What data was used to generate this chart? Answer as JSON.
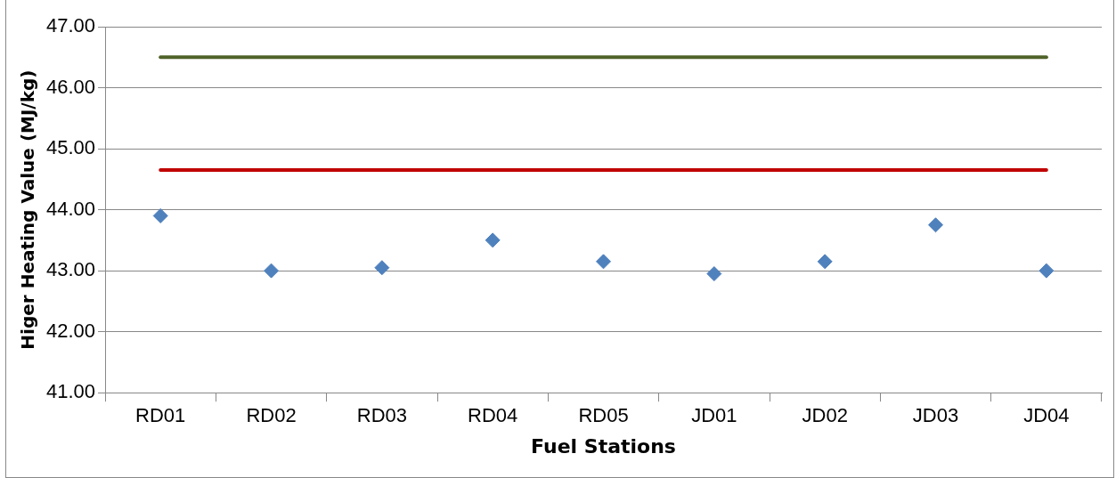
{
  "chart_data": {
    "type": "scatter",
    "xlabel": "Fuel Stations",
    "ylabel": "Higer Heating Value (MJ/kg)",
    "categories": [
      "RD01",
      "RD02",
      "RD03",
      "RD04",
      "RD05",
      "JD01",
      "JD02",
      "JD03",
      "JD04"
    ],
    "series": [
      {
        "type": "line",
        "color": "#4f6228",
        "marker": "none",
        "values": [
          46.5,
          46.5,
          46.5,
          46.5,
          46.5,
          46.5,
          46.5,
          46.5,
          46.5
        ]
      },
      {
        "type": "line",
        "color": "#c00000",
        "marker": "none",
        "values": [
          44.65,
          44.65,
          44.65,
          44.65,
          44.65,
          44.65,
          44.65,
          44.65,
          44.65
        ]
      },
      {
        "type": "scatter",
        "color": "#4f81bd",
        "marker": "diamond",
        "values": [
          43.9,
          43.0,
          43.05,
          43.5,
          43.15,
          42.95,
          43.15,
          43.75,
          43.0
        ]
      }
    ],
    "ylim": [
      41,
      47
    ],
    "yticks": [
      {
        "value": 41,
        "label": "41.00"
      },
      {
        "value": 42,
        "label": "42.00"
      },
      {
        "value": 43,
        "label": "43.00"
      },
      {
        "value": 44,
        "label": "44.00"
      },
      {
        "value": 45,
        "label": "45.00"
      },
      {
        "value": 46,
        "label": "46.00"
      },
      {
        "value": 47,
        "label": "47.00"
      }
    ],
    "grid": "y",
    "legend": false
  }
}
